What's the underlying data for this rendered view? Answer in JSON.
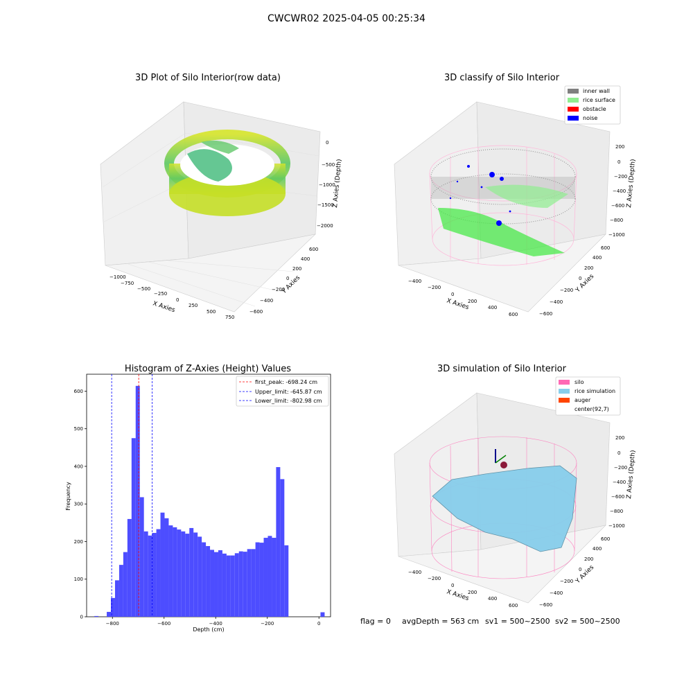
{
  "figure": {
    "title": "CWCWR02 2025-04-05 00:25:34",
    "footer": {
      "flag": "flag = 0",
      "avg_depth": "avgDepth = 563 cm",
      "sv1": "sv1 = 500~2500",
      "sv2": "sv2 = 500~2500"
    }
  },
  "colors": {
    "bar": "#4d4dff",
    "peak_line": "#ff0000",
    "limit_line": "#0000ff",
    "inner_wall": "#808080",
    "rice_surface": "#90ee90",
    "obstacle": "#ff0000",
    "noise": "#0000ff",
    "silo": "#ff69b4",
    "rice_simulation": "#87ceeb",
    "auger": "#ff4500"
  },
  "chart_data": [
    {
      "type": "scatter",
      "projection": "3d",
      "title": "3D Plot of Silo Interior(row data)",
      "xlabel": "X Axies",
      "ylabel": "Y Axies",
      "zlabel": "Z Axies (Depth)",
      "x_ticks": [
        "−1000",
        "−750",
        "−500",
        "−250",
        "0",
        "250",
        "500",
        "750"
      ],
      "y_ticks": [
        "−600",
        "−400",
        "−200",
        "0",
        "200",
        "400",
        "600"
      ],
      "z_ticks": [
        "0",
        "−500",
        "−1000",
        "−1500",
        "−2000"
      ],
      "xlim": [
        -1050,
        780
      ],
      "ylim": [
        -650,
        650
      ],
      "zlim": [
        -2200,
        0
      ],
      "colormap": "viridis",
      "description_series": [
        {
          "name": "",
          "shape": "ring of depth points",
          "depth_range": [
            -1100,
            -300
          ]
        }
      ]
    },
    {
      "type": "scatter",
      "projection": "3d",
      "title": "3D classify of Silo Interior",
      "xlabel": "X Axies",
      "ylabel": "Y Axies",
      "zlabel": "Z Axies (Depth)",
      "x_ticks": [
        "−400",
        "−200",
        "0",
        "200",
        "400",
        "600"
      ],
      "y_ticks": [
        "−600",
        "−400",
        "−200",
        "0",
        "200",
        "400",
        "600"
      ],
      "z_ticks": [
        "200",
        "0",
        "−200",
        "−400",
        "−600",
        "−800",
        "−1000"
      ],
      "xlim": [
        -500,
        700
      ],
      "ylim": [
        -650,
        650
      ],
      "zlim": [
        -1000,
        250
      ],
      "legend_position": "top-right",
      "legend": [
        {
          "label": "inner wall",
          "color": "#808080"
        },
        {
          "label": "rice surface",
          "color": "#90ee90"
        },
        {
          "label": "obstacle",
          "color": "#ff0000"
        },
        {
          "label": "noise",
          "color": "#0000ff"
        }
      ]
    },
    {
      "type": "bar",
      "title": "Histogram of Z-Axies (Height) Values",
      "xlabel": "Depth (cm)",
      "ylabel": "Frequency",
      "x_ticks": [
        -800,
        -600,
        -400,
        -200,
        0
      ],
      "y_ticks": [
        0,
        100,
        200,
        300,
        400,
        500,
        600
      ],
      "xlim": [
        -900,
        45
      ],
      "ylim": [
        0,
        645
      ],
      "legend_position": "top-right",
      "bins": [
        {
          "x0": -870,
          "x1": -854,
          "value": 2
        },
        {
          "x0": -822,
          "x1": -806,
          "value": 13
        },
        {
          "x0": -806,
          "x1": -790,
          "value": 50
        },
        {
          "x0": -790,
          "x1": -774,
          "value": 97
        },
        {
          "x0": -774,
          "x1": -758,
          "value": 138
        },
        {
          "x0": -758,
          "x1": -742,
          "value": 172
        },
        {
          "x0": -742,
          "x1": -726,
          "value": 260
        },
        {
          "x0": -726,
          "x1": -710,
          "value": 475
        },
        {
          "x0": -710,
          "x1": -694,
          "value": 614
        },
        {
          "x0": -694,
          "x1": -678,
          "value": 318
        },
        {
          "x0": -678,
          "x1": -662,
          "value": 227
        },
        {
          "x0": -662,
          "x1": -646,
          "value": 216
        },
        {
          "x0": -646,
          "x1": -630,
          "value": 223
        },
        {
          "x0": -630,
          "x1": -614,
          "value": 233
        },
        {
          "x0": -614,
          "x1": -598,
          "value": 277
        },
        {
          "x0": -598,
          "x1": -582,
          "value": 262
        },
        {
          "x0": -582,
          "x1": -566,
          "value": 243
        },
        {
          "x0": -566,
          "x1": -550,
          "value": 238
        },
        {
          "x0": -550,
          "x1": -534,
          "value": 232
        },
        {
          "x0": -534,
          "x1": -518,
          "value": 227
        },
        {
          "x0": -518,
          "x1": -502,
          "value": 221
        },
        {
          "x0": -502,
          "x1": -486,
          "value": 236
        },
        {
          "x0": -486,
          "x1": -470,
          "value": 224
        },
        {
          "x0": -470,
          "x1": -454,
          "value": 213
        },
        {
          "x0": -454,
          "x1": -438,
          "value": 198
        },
        {
          "x0": -438,
          "x1": -422,
          "value": 188
        },
        {
          "x0": -422,
          "x1": -406,
          "value": 178
        },
        {
          "x0": -406,
          "x1": -390,
          "value": 172
        },
        {
          "x0": -390,
          "x1": -374,
          "value": 177
        },
        {
          "x0": -374,
          "x1": -358,
          "value": 168
        },
        {
          "x0": -358,
          "x1": -342,
          "value": 163
        },
        {
          "x0": -342,
          "x1": -326,
          "value": 163
        },
        {
          "x0": -326,
          "x1": -310,
          "value": 169
        },
        {
          "x0": -310,
          "x1": -294,
          "value": 174
        },
        {
          "x0": -294,
          "x1": -278,
          "value": 173
        },
        {
          "x0": -278,
          "x1": -262,
          "value": 180
        },
        {
          "x0": -262,
          "x1": -246,
          "value": 180
        },
        {
          "x0": -246,
          "x1": -230,
          "value": 198
        },
        {
          "x0": -230,
          "x1": -214,
          "value": 197
        },
        {
          "x0": -214,
          "x1": -198,
          "value": 210
        },
        {
          "x0": -198,
          "x1": -182,
          "value": 215
        },
        {
          "x0": -182,
          "x1": -166,
          "value": 210
        },
        {
          "x0": -166,
          "x1": -150,
          "value": 398
        },
        {
          "x0": -150,
          "x1": -134,
          "value": 366
        },
        {
          "x0": -134,
          "x1": -118,
          "value": 190
        },
        {
          "x0": 6,
          "x1": 22,
          "value": 12
        }
      ],
      "vlines": [
        {
          "label": "first_peak: -698.24 cm",
          "x": -698.24,
          "color": "#ff0000"
        },
        {
          "label": "Upper_limit: -645.87 cm",
          "x": -645.87,
          "color": "#0000ff"
        },
        {
          "label": "Lower_limit: -802.98 cm",
          "x": -802.98,
          "color": "#0000ff"
        }
      ]
    },
    {
      "type": "area",
      "projection": "3d",
      "title": "3D simulation of Silo Interior",
      "xlabel": "X Axies",
      "ylabel": "Y Axies",
      "zlabel": "Z Axies (Depth)",
      "x_ticks": [
        "−400",
        "−200",
        "0",
        "200",
        "400",
        "600"
      ],
      "y_ticks": [
        "−600",
        "−400",
        "−200",
        "0",
        "200",
        "400",
        "600"
      ],
      "z_ticks": [
        "200",
        "0",
        "−200",
        "−400",
        "−600",
        "−800",
        "−1000"
      ],
      "xlim": [
        -500,
        700
      ],
      "ylim": [
        -650,
        650
      ],
      "zlim": [
        -1000,
        250
      ],
      "legend_position": "top-right",
      "legend": [
        {
          "label": "silo",
          "color": "#ff69b4"
        },
        {
          "label": "rice simulation",
          "color": "#87ceeb"
        },
        {
          "label": "auger",
          "color": "#ff4500"
        },
        {
          "label": "center(92,7)",
          "color": ""
        }
      ]
    }
  ]
}
